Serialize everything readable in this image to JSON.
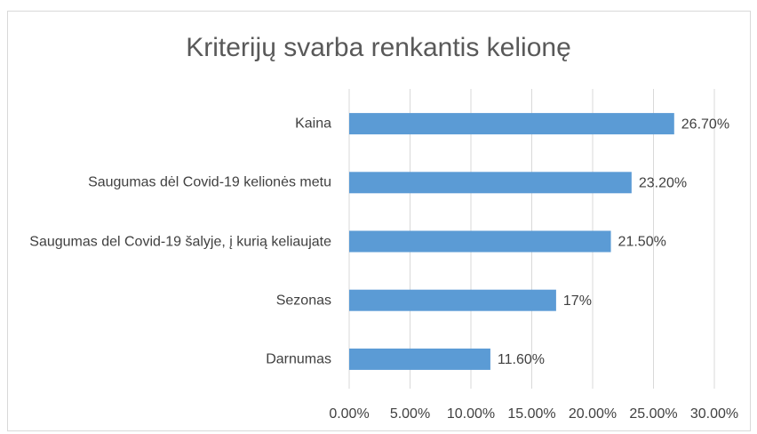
{
  "chart_data": {
    "type": "bar",
    "orientation": "horizontal",
    "title": "Kriterijų svarba renkantis kelionę",
    "categories": [
      "Kaina",
      "Saugumas dėl Covid-19 kelionės metu",
      "Saugumas del Covid-19 šalyje, į kurią keliaujate",
      "Sezonas",
      "Darnumas"
    ],
    "values": [
      26.7,
      23.2,
      21.5,
      17,
      11.6
    ],
    "value_labels": [
      "26.70%",
      "23.20%",
      "21.50%",
      "17%",
      "11.60%"
    ],
    "color": "#5b9bd5",
    "xlim": [
      0,
      30
    ],
    "xticks": [
      {
        "value": 0,
        "label": "0.00%"
      },
      {
        "value": 5,
        "label": "5.00%"
      },
      {
        "value": 10,
        "label": "10.00%"
      },
      {
        "value": 15,
        "label": "15.00%"
      },
      {
        "value": 20,
        "label": "20.00%"
      },
      {
        "value": 25,
        "label": "25.00%"
      },
      {
        "value": 30,
        "label": "30.00%"
      }
    ],
    "grid": true
  }
}
